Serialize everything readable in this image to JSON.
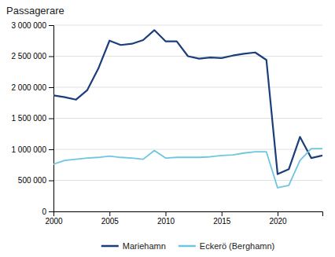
{
  "chart_data": {
    "type": "line",
    "title": "Passagerare",
    "x": [
      2000,
      2001,
      2002,
      2003,
      2004,
      2005,
      2006,
      2007,
      2008,
      2009,
      2010,
      2011,
      2012,
      2013,
      2014,
      2015,
      2016,
      2017,
      2018,
      2019,
      2020,
      2021,
      2022,
      2023,
      2024
    ],
    "series": [
      {
        "name": "Mariehamn",
        "color": "#1a3d7c",
        "values": [
          1870000,
          1840000,
          1800000,
          1950000,
          2300000,
          2750000,
          2680000,
          2700000,
          2760000,
          2920000,
          2740000,
          2740000,
          2500000,
          2460000,
          2480000,
          2470000,
          2510000,
          2540000,
          2560000,
          2440000,
          600000,
          680000,
          1200000,
          860000,
          900000
        ]
      },
      {
        "name": "Eckerö (Berghamn)",
        "color": "#6ec6e0",
        "values": [
          760000,
          820000,
          840000,
          860000,
          870000,
          890000,
          870000,
          860000,
          840000,
          980000,
          860000,
          870000,
          870000,
          870000,
          880000,
          900000,
          910000,
          940000,
          960000,
          960000,
          380000,
          420000,
          820000,
          1010000,
          1010000
        ]
      }
    ],
    "xlim": [
      2000,
      2024
    ],
    "ylim": [
      0,
      3000000
    ],
    "xticks": [
      2000,
      2005,
      2010,
      2015,
      2020
    ],
    "yticks": [
      0,
      {
        "value": 500000,
        "label": "500 000"
      },
      {
        "value": 1000000,
        "label": "1 000 000"
      },
      {
        "value": 1500000,
        "label": "1 500 000"
      },
      {
        "value": 2000000,
        "label": "2 000 000"
      },
      {
        "value": 2500000,
        "label": "2 500 000"
      },
      {
        "value": 3000000,
        "label": "3 000 000"
      }
    ],
    "grid": true,
    "legend": "bottom"
  }
}
